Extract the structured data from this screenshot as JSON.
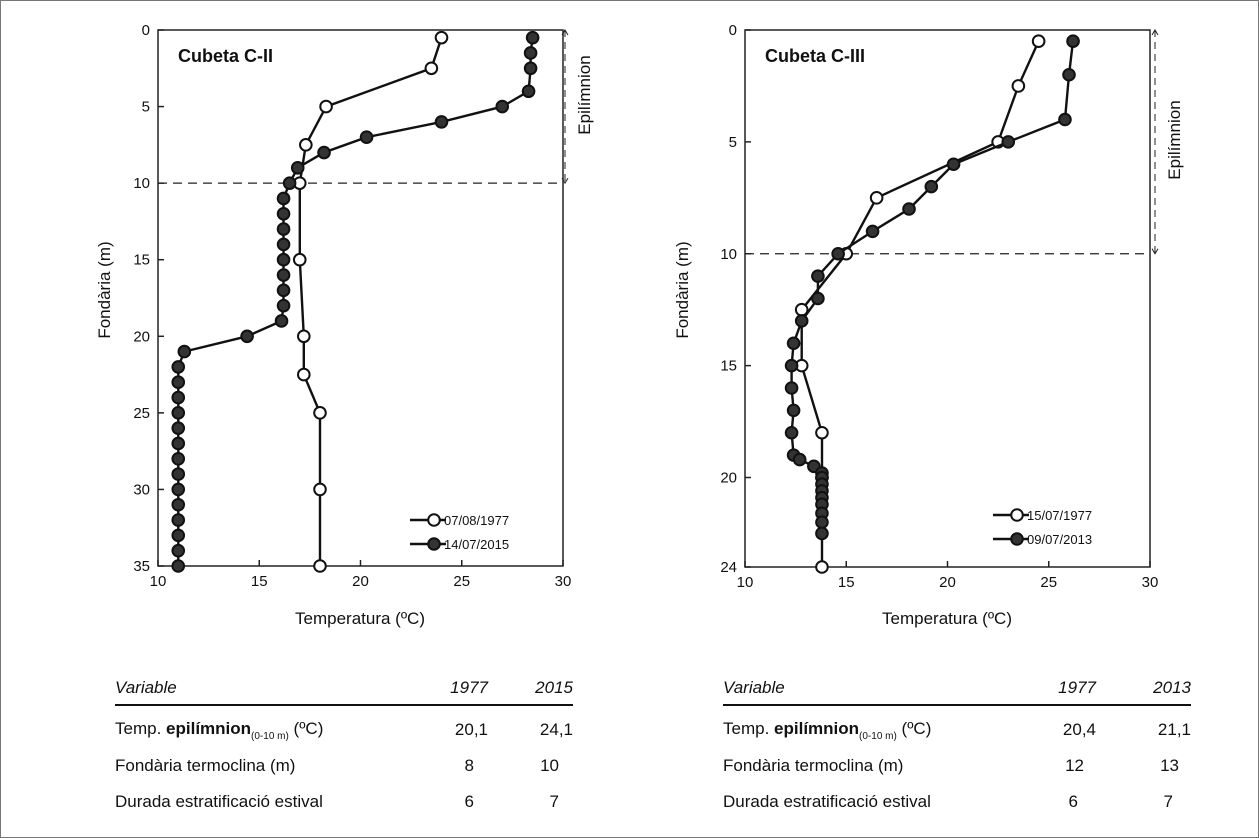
{
  "chart_data": [
    {
      "type": "line",
      "title": "Cubeta C-II",
      "xlabel": "Temperatura (ºC)",
      "ylabel": "Fondària (m)",
      "xlim": [
        10,
        30
      ],
      "ylim": [
        0,
        35
      ],
      "y_inverted": true,
      "xticks": [
        10,
        15,
        20,
        25,
        30
      ],
      "yticks": [
        0,
        5,
        10,
        15,
        20,
        25,
        30,
        35
      ],
      "thermocline_depth": 10,
      "annotation": "Epilímnion",
      "legend_position": "bottom-right",
      "series": [
        {
          "name": "07/08/1977",
          "marker": "open-circle",
          "points": [
            [
              24.0,
              0.5
            ],
            [
              23.5,
              2.5
            ],
            [
              18.3,
              5.0
            ],
            [
              17.3,
              7.5
            ],
            [
              17.0,
              10.0
            ],
            [
              17.0,
              15.0
            ],
            [
              17.2,
              20.0
            ],
            [
              17.2,
              22.5
            ],
            [
              18.0,
              25.0
            ],
            [
              18.0,
              30.0
            ],
            [
              18.0,
              35.0
            ]
          ]
        },
        {
          "name": "14/07/2015",
          "marker": "filled-circle",
          "points": [
            [
              28.5,
              0.5
            ],
            [
              28.4,
              1.5
            ],
            [
              28.4,
              2.5
            ],
            [
              28.3,
              4.0
            ],
            [
              27.0,
              5.0
            ],
            [
              24.0,
              6.0
            ],
            [
              20.3,
              7.0
            ],
            [
              18.2,
              8.0
            ],
            [
              16.9,
              9.0
            ],
            [
              16.5,
              10.0
            ],
            [
              16.2,
              11.0
            ],
            [
              16.2,
              12.0
            ],
            [
              16.2,
              13.0
            ],
            [
              16.2,
              14.0
            ],
            [
              16.2,
              15.0
            ],
            [
              16.2,
              16.0
            ],
            [
              16.2,
              17.0
            ],
            [
              16.2,
              18.0
            ],
            [
              16.1,
              19.0
            ],
            [
              14.4,
              20.0
            ],
            [
              11.3,
              21.0
            ],
            [
              11.0,
              22.0
            ],
            [
              11.0,
              23.0
            ],
            [
              11.0,
              24.0
            ],
            [
              11.0,
              25.0
            ],
            [
              11.0,
              26.0
            ],
            [
              11.0,
              27.0
            ],
            [
              11.0,
              28.0
            ],
            [
              11.0,
              29.0
            ],
            [
              11.0,
              30.0
            ],
            [
              11.0,
              31.0
            ],
            [
              11.0,
              32.0
            ],
            [
              11.0,
              33.0
            ],
            [
              11.0,
              34.0
            ],
            [
              11.0,
              35.0
            ]
          ]
        }
      ]
    },
    {
      "type": "line",
      "title": "Cubeta C-III",
      "xlabel": "Temperatura (ºC)",
      "ylabel": "Fondària (m)",
      "xlim": [
        10,
        30
      ],
      "ylim": [
        0,
        24
      ],
      "y_inverted": true,
      "xticks": [
        10,
        15,
        20,
        25,
        30
      ],
      "yticks": [
        0,
        5,
        10,
        15,
        20,
        24
      ],
      "thermocline_depth": 10,
      "annotation": "Epilímnion",
      "legend_position": "bottom-right",
      "series": [
        {
          "name": "15/07/1977",
          "marker": "open-circle",
          "points": [
            [
              24.5,
              0.5
            ],
            [
              23.5,
              2.5
            ],
            [
              22.5,
              5.0
            ],
            [
              16.5,
              7.5
            ],
            [
              15.0,
              10.0
            ],
            [
              12.8,
              12.5
            ],
            [
              12.8,
              15.0
            ],
            [
              13.8,
              18.0
            ],
            [
              13.8,
              20.0
            ],
            [
              13.8,
              24.0
            ]
          ]
        },
        {
          "name": "09/07/2013",
          "marker": "filled-circle",
          "points": [
            [
              26.2,
              0.5
            ],
            [
              26.0,
              2.0
            ],
            [
              25.8,
              4.0
            ],
            [
              23.0,
              5.0
            ],
            [
              20.3,
              6.0
            ],
            [
              19.2,
              7.0
            ],
            [
              18.1,
              8.0
            ],
            [
              16.3,
              9.0
            ],
            [
              14.6,
              10.0
            ],
            [
              13.6,
              11.0
            ],
            [
              13.6,
              12.0
            ],
            [
              12.8,
              13.0
            ],
            [
              12.4,
              14.0
            ],
            [
              12.3,
              15.0
            ],
            [
              12.3,
              16.0
            ],
            [
              12.4,
              17.0
            ],
            [
              12.3,
              18.0
            ],
            [
              12.4,
              19.0
            ],
            [
              12.7,
              19.2
            ],
            [
              13.4,
              19.5
            ],
            [
              13.8,
              19.8
            ],
            [
              13.8,
              20.0
            ],
            [
              13.8,
              20.3
            ],
            [
              13.8,
              20.6
            ],
            [
              13.8,
              20.9
            ],
            [
              13.8,
              21.2
            ],
            [
              13.8,
              21.6
            ],
            [
              13.8,
              22.0
            ],
            [
              13.8,
              22.5
            ]
          ]
        }
      ]
    }
  ],
  "tables": [
    {
      "headers": [
        "Variable",
        "1977",
        "2015"
      ],
      "rows": [
        {
          "label_pre": "Temp. ",
          "label_bold": "epilímnion",
          "label_sub": "(0-10 m)",
          "label_post": " (ºC)",
          "v1": "20,1",
          "v2": "24,1"
        },
        {
          "label": "Fondària termoclina (m)",
          "v1": "8",
          "v2": "10"
        },
        {
          "label": "Durada estratificació estival",
          "v1": "6",
          "v2": "7"
        }
      ]
    },
    {
      "headers": [
        "Variable",
        "1977",
        "2013"
      ],
      "rows": [
        {
          "label_pre": "Temp. ",
          "label_bold": "epilímnion",
          "label_sub": "(0-10 m)",
          "label_post": " (ºC)",
          "v1": "20,4",
          "v2": "21,1"
        },
        {
          "label": "Fondària termoclina (m)",
          "v1": "12",
          "v2": "13"
        },
        {
          "label": "Durada estratificació estival",
          "v1": "6",
          "v2": "7"
        }
      ]
    }
  ]
}
